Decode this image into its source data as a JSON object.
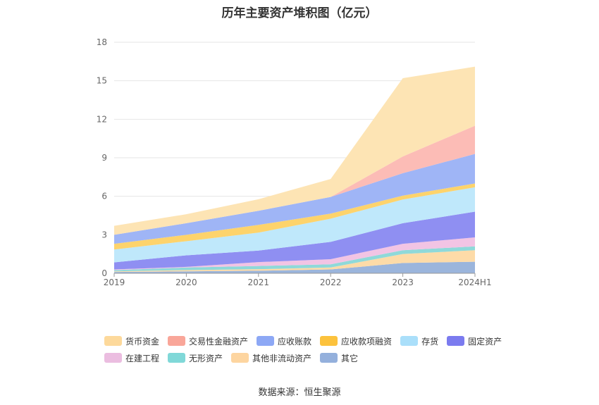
{
  "chart_data": {
    "type": "area",
    "title": "历年主要资产堆积图（亿元）",
    "categories": [
      "2019",
      "2020",
      "2021",
      "2022",
      "2023",
      "2024H1"
    ],
    "ylim": [
      0,
      18
    ],
    "yticks": [
      "0",
      "3",
      "6",
      "9",
      "12",
      "15",
      "18"
    ],
    "grid": true,
    "legend_position": "bottom",
    "stacked": true,
    "series": [
      {
        "name": "其它",
        "color": "#9bb5dc",
        "values": [
          0.1,
          0.15,
          0.2,
          0.3,
          0.8,
          0.9
        ]
      },
      {
        "name": "其他非流动资产",
        "color": "#fddba8",
        "values": [
          0.05,
          0.1,
          0.12,
          0.15,
          0.7,
          0.9
        ]
      },
      {
        "name": "无形资产",
        "color": "#8fd9d9",
        "values": [
          0.1,
          0.2,
          0.25,
          0.25,
          0.3,
          0.3
        ]
      },
      {
        "name": "在建工程",
        "color": "#f2c4e4",
        "values": [
          0.05,
          0.05,
          0.3,
          0.4,
          0.5,
          0.7
        ]
      },
      {
        "name": "固定资产",
        "color": "#8f8ff2",
        "values": [
          0.55,
          0.9,
          0.9,
          1.35,
          1.6,
          2.0
        ]
      },
      {
        "name": "存货",
        "color": "#bfe8fb",
        "values": [
          1.0,
          1.1,
          1.4,
          1.8,
          1.85,
          1.9
        ]
      },
      {
        "name": "应收款项融资",
        "color": "#fdd36c",
        "values": [
          0.45,
          0.5,
          0.6,
          0.4,
          0.3,
          0.3
        ]
      },
      {
        "name": "应收账款",
        "color": "#9fb5f6",
        "values": [
          0.7,
          0.9,
          1.1,
          1.3,
          1.75,
          2.3
        ]
      },
      {
        "name": "交易性金融资产",
        "color": "#fcbcb6",
        "values": [
          0.0,
          0.0,
          0.0,
          0.0,
          1.3,
          2.2
        ]
      },
      {
        "name": "货币资金",
        "color": "#fde4b4",
        "values": [
          0.7,
          0.7,
          0.9,
          1.4,
          6.1,
          4.6
        ]
      }
    ]
  },
  "legend": {
    "row1": [
      {
        "label": "货币资金",
        "color": "#fdd99b"
      },
      {
        "label": "交易性金融资产",
        "color": "#f9a699"
      },
      {
        "label": "应收账款",
        "color": "#8da8f5"
      },
      {
        "label": "应收款项融资",
        "color": "#fcc23d"
      },
      {
        "label": "存货",
        "color": "#aadffa"
      },
      {
        "label": "固定资产",
        "color": "#7b7bef"
      }
    ],
    "row2": [
      {
        "label": "在建工程",
        "color": "#ebbde0"
      },
      {
        "label": "无形资产",
        "color": "#80d8d8"
      },
      {
        "label": "其他非流动资产",
        "color": "#fdd5a0"
      },
      {
        "label": "其它",
        "color": "#94b0dc"
      }
    ]
  },
  "source": "数据来源：恒生聚源"
}
